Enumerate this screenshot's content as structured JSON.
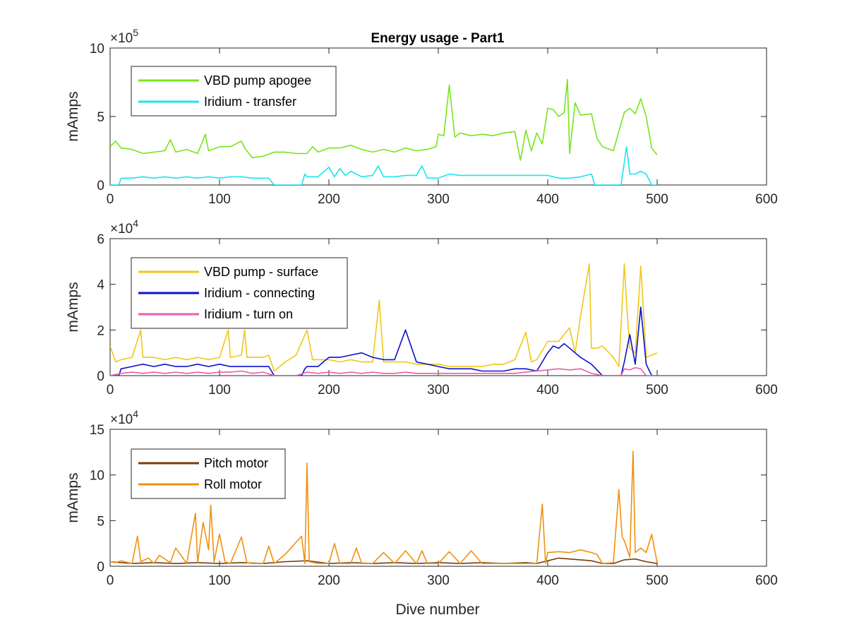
{
  "figure": {
    "title": "Energy usage - Part1",
    "xlabel": "Dive number"
  },
  "chart_data": [
    {
      "type": "line",
      "title": "Energy usage - Part1",
      "xlabel": "",
      "ylabel": "mAmps",
      "exponent": "5",
      "xlim": [
        0,
        600
      ],
      "ylim": [
        0,
        10
      ],
      "xticks": [
        0,
        100,
        200,
        300,
        400,
        500,
        600
      ],
      "yticks": [
        0,
        5,
        10
      ],
      "grid": false,
      "legend": "top-left",
      "series": [
        {
          "name": "VBD pump apogee",
          "color": "#77e51a",
          "x": [
            0,
            5,
            10,
            20,
            30,
            40,
            50,
            55,
            60,
            70,
            80,
            87,
            90,
            100,
            110,
            120,
            123,
            130,
            140,
            150,
            160,
            170,
            180,
            185,
            190,
            200,
            210,
            220,
            230,
            240,
            250,
            260,
            270,
            280,
            290,
            298,
            300,
            305,
            310,
            315,
            320,
            330,
            340,
            350,
            360,
            370,
            375,
            380,
            385,
            390,
            395,
            400,
            405,
            410,
            415,
            418,
            420,
            425,
            430,
            440,
            445,
            450,
            460,
            470,
            475,
            480,
            485,
            490,
            495,
            500
          ],
          "y": [
            2.8,
            3.2,
            2.7,
            2.6,
            2.3,
            2.4,
            2.5,
            3.3,
            2.4,
            2.6,
            2.3,
            3.7,
            2.5,
            2.8,
            2.8,
            3.2,
            2.7,
            2.0,
            2.1,
            2.4,
            2.4,
            2.3,
            2.3,
            2.8,
            2.4,
            2.7,
            2.7,
            2.9,
            2.6,
            2.4,
            2.6,
            2.4,
            2.7,
            2.5,
            2.6,
            2.8,
            3.7,
            3.6,
            7.3,
            3.5,
            3.8,
            3.6,
            3.7,
            3.6,
            3.8,
            3.9,
            1.8,
            4.0,
            2.5,
            3.8,
            3.0,
            5.6,
            5.5,
            5.0,
            5.3,
            7.7,
            2.3,
            6.0,
            5.1,
            5.2,
            3.4,
            2.8,
            2.5,
            5.3,
            5.6,
            5.2,
            6.3,
            5.0,
            2.7,
            2.2
          ]
        },
        {
          "name": "Iridium - transfer",
          "color": "#19e6f0",
          "x": [
            0,
            8,
            10,
            20,
            30,
            40,
            50,
            60,
            70,
            80,
            90,
            100,
            110,
            120,
            130,
            140,
            145,
            150,
            160,
            170,
            175,
            178,
            180,
            190,
            200,
            205,
            210,
            215,
            220,
            230,
            240,
            245,
            250,
            260,
            270,
            280,
            285,
            290,
            300,
            310,
            320,
            330,
            340,
            350,
            360,
            370,
            380,
            390,
            400,
            410,
            420,
            430,
            440,
            443,
            450,
            460,
            467,
            472,
            475,
            480,
            485,
            490,
            495,
            500
          ],
          "y": [
            0,
            0,
            0.5,
            0.5,
            0.6,
            0.5,
            0.6,
            0.5,
            0.6,
            0.5,
            0.6,
            0.5,
            0.6,
            0.6,
            0.5,
            0.5,
            0.5,
            0,
            0,
            0,
            0,
            0.8,
            0.6,
            0.6,
            1.3,
            0.6,
            1.2,
            0.7,
            1.0,
            0.6,
            0.7,
            1.4,
            0.6,
            0.6,
            0.7,
            0.7,
            1.4,
            0.5,
            0.5,
            0.8,
            0.7,
            0.7,
            0.7,
            0.7,
            0.7,
            0.7,
            0.7,
            0.7,
            0.7,
            0.5,
            0.5,
            0.6,
            0.8,
            0,
            0,
            0,
            0,
            2.8,
            0.8,
            0.8,
            1.0,
            0.8,
            0,
            0
          ]
        }
      ]
    },
    {
      "type": "line",
      "title": "",
      "xlabel": "",
      "ylabel": "mAmps",
      "exponent": "4",
      "xlim": [
        0,
        600
      ],
      "ylim": [
        0,
        6
      ],
      "xticks": [
        0,
        100,
        200,
        300,
        400,
        500,
        600
      ],
      "yticks": [
        0,
        2,
        4,
        6
      ],
      "grid": false,
      "legend": "top-left",
      "series": [
        {
          "name": "VBD pump - surface",
          "color": "#f0c818",
          "x": [
            0,
            5,
            10,
            20,
            28,
            30,
            40,
            50,
            60,
            70,
            80,
            90,
            100,
            108,
            110,
            120,
            123,
            125,
            130,
            140,
            145,
            150,
            160,
            170,
            180,
            185,
            190,
            200,
            210,
            220,
            230,
            240,
            246,
            250,
            260,
            270,
            280,
            290,
            300,
            310,
            320,
            330,
            340,
            350,
            360,
            370,
            380,
            385,
            390,
            400,
            410,
            420,
            425,
            430,
            438,
            440,
            445,
            450,
            460,
            465,
            470,
            472,
            475,
            480,
            485,
            490,
            495,
            500
          ],
          "y": [
            1.3,
            0.6,
            0.7,
            0.8,
            2.0,
            0.8,
            0.8,
            0.7,
            0.8,
            0.7,
            0.8,
            0.7,
            0.8,
            2.0,
            0.8,
            0.9,
            2.0,
            0.8,
            0.8,
            0.8,
            0.9,
            0.2,
            0.6,
            0.9,
            2.0,
            0.7,
            0.7,
            0.7,
            0.6,
            0.7,
            0.6,
            0.6,
            3.3,
            0.6,
            0.6,
            0.6,
            0.5,
            0.5,
            0.5,
            0.4,
            0.4,
            0.4,
            0.4,
            0.5,
            0.5,
            0.7,
            1.9,
            0.6,
            0.7,
            1.5,
            1.5,
            2.1,
            1.0,
            2.6,
            4.9,
            1.2,
            1.2,
            1.3,
            0.8,
            0.4,
            4.9,
            3.2,
            1.2,
            1.0,
            4.8,
            0.8,
            0.9,
            1.0
          ]
        },
        {
          "name": "Iridium - connecting",
          "color": "#0a12c8",
          "x": [
            0,
            8,
            10,
            20,
            30,
            40,
            50,
            60,
            70,
            80,
            90,
            100,
            110,
            120,
            130,
            140,
            145,
            150,
            160,
            170,
            175,
            178,
            180,
            190,
            200,
            210,
            220,
            230,
            240,
            250,
            260,
            270,
            280,
            290,
            300,
            310,
            320,
            330,
            340,
            350,
            360,
            370,
            380,
            390,
            400,
            405,
            410,
            415,
            420,
            430,
            440,
            450,
            460,
            467,
            470,
            475,
            480,
            485,
            490,
            495,
            500
          ],
          "y": [
            0,
            0,
            0.3,
            0.4,
            0.5,
            0.4,
            0.5,
            0.4,
            0.4,
            0.5,
            0.4,
            0.5,
            0.4,
            0.4,
            0.4,
            0.4,
            0.4,
            0,
            0,
            0,
            0,
            0.3,
            0.4,
            0.4,
            0.8,
            0.8,
            0.9,
            1.0,
            0.8,
            0.7,
            0.7,
            2.0,
            0.6,
            0.5,
            0.4,
            0.3,
            0.3,
            0.3,
            0.2,
            0.2,
            0.2,
            0.3,
            0.3,
            0.2,
            1.0,
            1.3,
            1.2,
            1.4,
            1.2,
            0.8,
            0.5,
            0,
            0,
            0,
            0.6,
            1.8,
            0.5,
            3.0,
            0.5,
            0,
            0
          ]
        },
        {
          "name": "Iridium - turn on",
          "color": "#ea5ea9",
          "x": [
            0,
            10,
            20,
            30,
            40,
            50,
            60,
            70,
            80,
            90,
            100,
            110,
            120,
            130,
            140,
            150,
            160,
            170,
            180,
            190,
            200,
            210,
            220,
            230,
            240,
            250,
            260,
            270,
            280,
            290,
            300,
            310,
            320,
            330,
            340,
            350,
            360,
            370,
            380,
            390,
            400,
            410,
            420,
            430,
            440,
            450,
            460,
            467,
            470,
            475,
            480,
            485,
            490,
            495,
            500
          ],
          "y": [
            0,
            0.1,
            0.15,
            0.1,
            0.15,
            0.1,
            0.15,
            0.1,
            0.15,
            0.1,
            0.15,
            0.15,
            0.2,
            0.1,
            0.15,
            0,
            0,
            0,
            0.15,
            0.1,
            0.15,
            0.1,
            0.15,
            0.1,
            0.15,
            0.1,
            0.1,
            0.15,
            0.1,
            0.1,
            0.1,
            0.1,
            0.1,
            0.1,
            0.1,
            0.1,
            0.1,
            0.1,
            0.15,
            0.2,
            0.25,
            0.3,
            0.25,
            0.3,
            0.1,
            0,
            0,
            0,
            0.3,
            0.25,
            0.35,
            0.3,
            0,
            0,
            0
          ]
        }
      ]
    },
    {
      "type": "line",
      "title": "",
      "xlabel": "Dive number",
      "ylabel": "mAmps",
      "exponent": "4",
      "xlim": [
        0,
        600
      ],
      "ylim": [
        0,
        15
      ],
      "xticks": [
        0,
        100,
        200,
        300,
        400,
        500,
        600
      ],
      "yticks": [
        0,
        5,
        10,
        15
      ],
      "grid": false,
      "legend": "top-left",
      "series": [
        {
          "name": "Pitch motor",
          "color": "#7a3b0c",
          "x": [
            0,
            20,
            40,
            60,
            80,
            100,
            120,
            140,
            160,
            180,
            200,
            220,
            240,
            260,
            280,
            300,
            320,
            340,
            360,
            380,
            390,
            400,
            410,
            420,
            430,
            440,
            450,
            460,
            470,
            480,
            490,
            500
          ],
          "y": [
            0.5,
            0.3,
            0.4,
            0.3,
            0.4,
            0.3,
            0.4,
            0.3,
            0.5,
            0.6,
            0.3,
            0.4,
            0.3,
            0.4,
            0.3,
            0.4,
            0.3,
            0.4,
            0.3,
            0.4,
            0.3,
            0.6,
            0.9,
            0.8,
            0.7,
            0.6,
            0.3,
            0.3,
            0.7,
            0.8,
            0.5,
            0.3
          ]
        },
        {
          "name": "Roll motor",
          "color": "#f0910e",
          "x": [
            0,
            5,
            10,
            20,
            25,
            28,
            35,
            40,
            45,
            55,
            60,
            70,
            78,
            80,
            85,
            90,
            92,
            95,
            100,
            105,
            110,
            120,
            125,
            130,
            140,
            145,
            150,
            160,
            175,
            178,
            180,
            182,
            190,
            200,
            205,
            210,
            220,
            225,
            230,
            240,
            250,
            260,
            270,
            280,
            285,
            290,
            300,
            310,
            320,
            330,
            340,
            350,
            360,
            370,
            380,
            390,
            395,
            398,
            400,
            410,
            420,
            430,
            440,
            445,
            450,
            460,
            465,
            468,
            470,
            475,
            478,
            480,
            485,
            490,
            495,
            500
          ],
          "y": [
            0.5,
            0.4,
            0.6,
            0.3,
            3.3,
            0.5,
            0.9,
            0.3,
            1.2,
            0.4,
            2.0,
            0.3,
            5.8,
            0.4,
            4.8,
            1.8,
            6.7,
            0.5,
            3.5,
            0.5,
            0.3,
            3.2,
            0.4,
            0.3,
            0.3,
            2.2,
            0.3,
            1.3,
            3.3,
            0.3,
            11.3,
            0.5,
            0.3,
            0.3,
            2.5,
            0.3,
            0.3,
            2.0,
            0.3,
            0.3,
            1.5,
            0.3,
            1.7,
            0.3,
            1.7,
            0.3,
            0.3,
            1.6,
            0.3,
            1.7,
            0.3,
            0.3,
            0.3,
            0.3,
            0.3,
            0.3,
            6.8,
            0.3,
            1.5,
            1.6,
            1.5,
            1.8,
            1.5,
            1.3,
            0.3,
            0.4,
            8.4,
            3.2,
            2.8,
            1.0,
            12.6,
            1.5,
            2.0,
            1.5,
            3.5,
            0.4
          ]
        }
      ]
    }
  ]
}
